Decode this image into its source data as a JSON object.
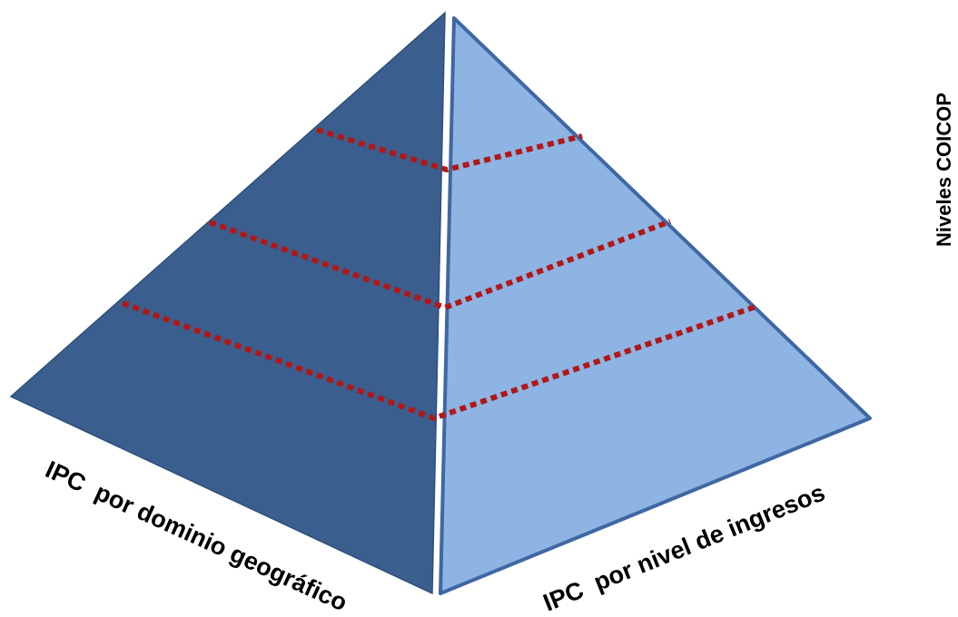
{
  "labels": {
    "left_face": "IPC  por dominio geográfico",
    "right_face": "IPC  por nivel de ingresos",
    "vertical_axis": "Niveles COICOP"
  },
  "colors": {
    "left_face": "#3a5f8f",
    "right_face": "#8db4e2",
    "right_face_border": "#3f67a3",
    "level_lines": "#b01818",
    "text": "#000000"
  },
  "level_line_count": 3
}
